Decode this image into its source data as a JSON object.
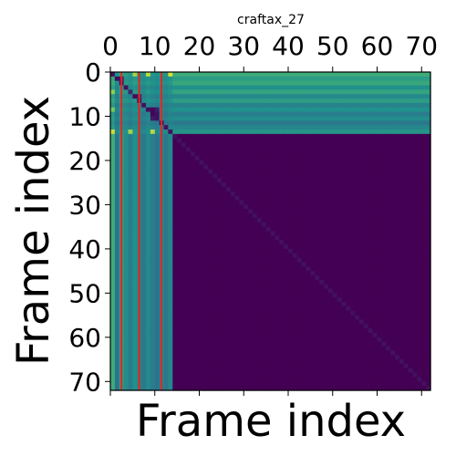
{
  "chart_data": {
    "type": "heatmap",
    "title": "craftax_27",
    "xlabel": "Frame index",
    "ylabel": "Frame index",
    "xlim": [
      0,
      72
    ],
    "ylim": [
      72,
      0
    ],
    "x_ticks": [
      0,
      10,
      20,
      30,
      40,
      50,
      60,
      70
    ],
    "y_ticks": [
      0,
      10,
      20,
      30,
      40,
      50,
      60,
      70
    ],
    "x_tick_labels": [
      "0",
      "10",
      "20",
      "30",
      "40",
      "50",
      "60",
      "70"
    ],
    "y_tick_labels": [
      "0",
      "10",
      "20",
      "30",
      "40",
      "50",
      "60",
      "70"
    ],
    "x_axis_position": "top",
    "colormap": "viridis",
    "grid": false,
    "n_frames": 72,
    "active_frames": 14,
    "inactive_value": 0.0,
    "diagonal_value": 0.05,
    "column_profile": [
      0.62,
      0.38,
      0.55,
      0.48,
      0.42,
      0.5,
      0.45,
      0.4,
      0.47,
      0.42,
      0.38,
      0.44,
      0.4,
      0.46
    ],
    "active_row_shades": [
      0.62,
      0.55,
      0.6,
      0.5,
      0.58,
      0.47,
      0.55,
      0.44,
      0.5,
      0.42,
      0.48,
      0.4,
      0.46,
      0.52
    ],
    "bright_cells": [
      {
        "row": 0,
        "col": 5,
        "value": 0.85
      },
      {
        "row": 0,
        "col": 8,
        "value": 0.9
      },
      {
        "row": 0,
        "col": 13,
        "value": 0.95
      },
      {
        "row": 4,
        "col": 0,
        "value": 0.82
      },
      {
        "row": 8,
        "col": 0,
        "value": 0.78
      },
      {
        "row": 13,
        "col": 0,
        "value": 0.92
      },
      {
        "row": 13,
        "col": 4,
        "value": 0.85
      },
      {
        "row": 13,
        "col": 9,
        "value": 0.88
      }
    ],
    "dark_cells": [
      {
        "row": 1,
        "col": 1,
        "value": 0.03
      },
      {
        "row": 1,
        "col": 2,
        "value": 0.08
      },
      {
        "row": 4,
        "col": 4,
        "value": 0.12
      },
      {
        "row": 5,
        "col": 5,
        "value": 0.03
      },
      {
        "row": 5,
        "col": 6,
        "value": 0.1
      },
      {
        "row": 8,
        "col": 9,
        "value": 0.02
      },
      {
        "row": 9,
        "col": 9,
        "value": 0.02
      },
      {
        "row": 9,
        "col": 10,
        "value": 0.04
      },
      {
        "row": 8,
        "col": 10,
        "value": 0.08
      },
      {
        "row": 10,
        "col": 9,
        "value": 0.08
      }
    ],
    "marker_lines": [
      {
        "x": 2,
        "color": "#e8241c"
      },
      {
        "x": 6,
        "color": "#e8241c"
      },
      {
        "x": 11,
        "color": "#e8241c"
      }
    ]
  }
}
